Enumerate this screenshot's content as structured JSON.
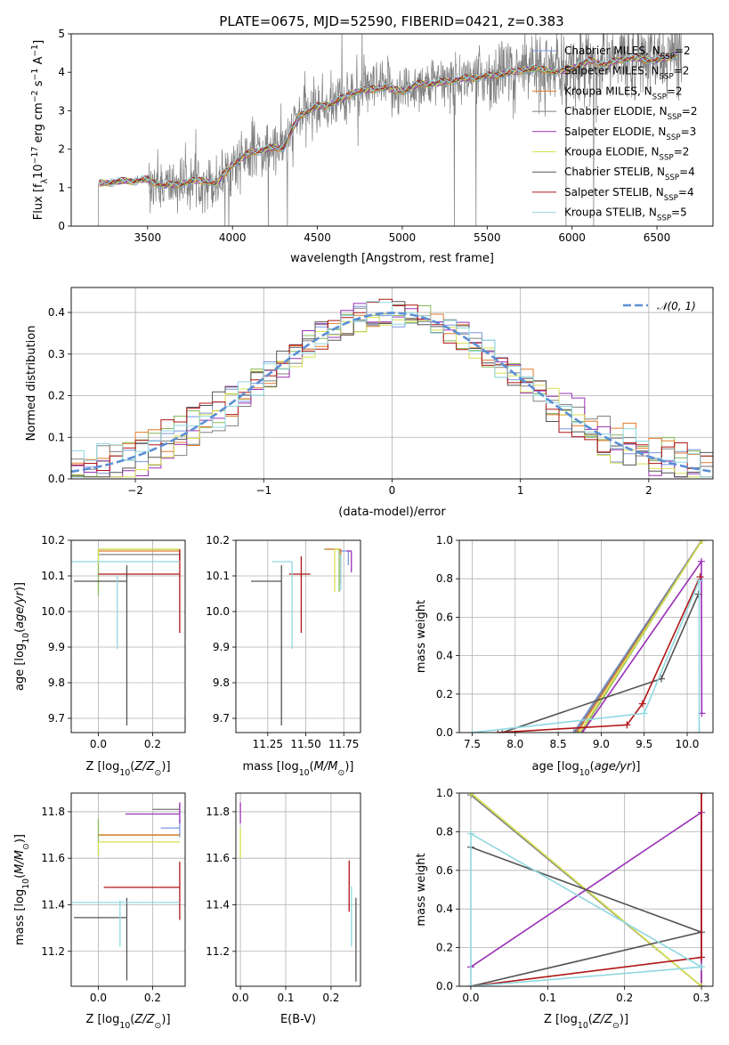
{
  "figure_title": "PLATE=0675, MJD=52590, FIBERID=0421, z=0.383",
  "colors": {
    "chabrier_miles": "#7b96e0",
    "salpeter_miles": "#8ab85a",
    "kroupa_miles": "#e07b2a",
    "chabrier_elodie": "#808080",
    "salpeter_elodie": "#9b30b8",
    "kroupa_elodie": "#d7e050",
    "chabrier_stelib": "#555555",
    "salpeter_stelib": "#b01515",
    "kroupa_stelib": "#8fd8e0",
    "normal_curve": "#5b8fd4",
    "grid": "#b0b0b0"
  },
  "chart_data": [
    {
      "id": "spectrum",
      "type": "line",
      "title": "PLATE=0675, MJD=52590, FIBERID=0421, z=0.383",
      "xlabel": "wavelength [Angstrom, rest frame]",
      "ylabel": "Flux [f_λ 10^-17 erg cm^-2 s^-1 A^-1]",
      "xlim": [
        3050,
        6830
      ],
      "ylim": [
        0,
        5
      ],
      "xticks": [
        3500,
        4000,
        4500,
        5000,
        5500,
        6000,
        6500
      ],
      "yticks": [
        0,
        1,
        2,
        3,
        4,
        5
      ],
      "grid": false,
      "legend_position": "top-right",
      "data_line": {
        "x_start": 3210,
        "x_end": 6650,
        "color": "gray"
      },
      "continuum_knots": {
        "x": [
          3210,
          3300,
          3500,
          3600,
          3700,
          3800,
          3900,
          4000,
          4100,
          4200,
          4300,
          4400,
          4500,
          4600,
          4700,
          4800,
          4900,
          5000,
          5100,
          5200,
          5300,
          5400,
          5500,
          5600,
          5700,
          5800,
          5900,
          6000,
          6100,
          6200,
          6300,
          6400,
          6500,
          6600,
          6650
        ],
        "y": [
          1.1,
          1.15,
          1.2,
          1.05,
          1.1,
          1.2,
          1.1,
          1.6,
          1.9,
          2.0,
          2.05,
          2.9,
          3.1,
          3.2,
          3.45,
          3.55,
          3.6,
          3.5,
          3.7,
          3.7,
          3.8,
          3.85,
          3.9,
          3.95,
          4.05,
          4.1,
          4.0,
          4.1,
          4.3,
          4.2,
          4.35,
          4.35,
          4.3,
          4.45,
          4.45
        ]
      },
      "series": [
        {
          "name": "Chabrier MILES, N_SSP=2",
          "label": "Chabrier MILES, N",
          "sub": "SSP",
          "nssp": "=2",
          "color_key": "chabrier_miles"
        },
        {
          "name": "Salpeter MILES, N_SSP=2",
          "label": "Salpeter MILES, N",
          "sub": "SSP",
          "nssp": "=2",
          "color_key": "salpeter_miles"
        },
        {
          "name": "Kroupa MILES, N_SSP=2",
          "label": "Kroupa MILES, N",
          "sub": "SSP",
          "nssp": "=2",
          "color_key": "kroupa_miles"
        },
        {
          "name": "Chabrier ELODIE, N_SSP=2",
          "label": "Chabrier ELODIE, N",
          "sub": "SSP",
          "nssp": "=2",
          "color_key": "chabrier_elodie"
        },
        {
          "name": "Salpeter ELODIE, N_SSP=3",
          "label": "Salpeter ELODIE, N",
          "sub": "SSP",
          "nssp": "=3",
          "color_key": "salpeter_elodie"
        },
        {
          "name": "Kroupa ELODIE, N_SSP=2",
          "label": "Kroupa ELODIE, N",
          "sub": "SSP",
          "nssp": "=2",
          "color_key": "kroupa_elodie"
        },
        {
          "name": "Chabrier STELIB, N_SSP=4",
          "label": "Chabrier STELIB, N",
          "sub": "SSP",
          "nssp": "=4",
          "color_key": "chabrier_stelib"
        },
        {
          "name": "Salpeter STELIB, N_SSP=4",
          "label": "Salpeter STELIB, N",
          "sub": "SSP",
          "nssp": "=4",
          "color_key": "salpeter_stelib"
        },
        {
          "name": "Kroupa STELIB, N_SSP=5",
          "label": "Kroupa STELIB, N",
          "sub": "SSP",
          "nssp": "=5",
          "color_key": "kroupa_stelib"
        }
      ]
    },
    {
      "id": "residuals",
      "type": "line",
      "xlabel": "(data-model)/error",
      "ylabel": "Normed distribution",
      "xlim": [
        -2.5,
        2.5
      ],
      "ylim": [
        0,
        0.46
      ],
      "xticks": [
        -2,
        -1,
        0,
        1,
        2
      ],
      "yticks": [
        0.0,
        0.1,
        0.2,
        0.3,
        0.4
      ],
      "grid": true,
      "legend_position": "top-right",
      "legend_label": "𝒩(0, 1)",
      "normal_curve": {
        "mean": 0,
        "sigma": 1
      },
      "histogram_bin_width": 0.1,
      "histogram_series": [
        "chabrier_miles",
        "salpeter_miles",
        "kroupa_miles",
        "chabrier_elodie",
        "salpeter_elodie",
        "kroupa_elodie",
        "chabrier_stelib",
        "salpeter_stelib",
        "kroupa_stelib"
      ]
    },
    {
      "id": "age_vs_Z",
      "type": "scatter",
      "xlabel": "Z [log10(Z/Z⊙)]",
      "ylabel": "age [log10(age/yr)]",
      "xlim": [
        -0.1,
        0.32
      ],
      "ylim": [
        9.66,
        10.2
      ],
      "xticks": [
        0.0,
        0.2
      ],
      "yticks": [
        9.7,
        9.8,
        9.9,
        10.0,
        10.1,
        10.2
      ],
      "grid": true,
      "points": [
        {
          "key": "chabrier_miles",
          "x": 0.3,
          "y": 10.17,
          "xerr": [
            0.0,
            0.0
          ],
          "yerr": [
            0.02,
            0.0
          ]
        },
        {
          "key": "salpeter_miles",
          "x": 0.0,
          "y": 10.175,
          "xerr": [
            0.0,
            0.3
          ],
          "yerr": [
            0.13,
            0.0
          ]
        },
        {
          "key": "kroupa_miles",
          "x": 0.3,
          "y": 10.17,
          "xerr": [
            0.3,
            0.0
          ],
          "yerr": [
            0.03,
            0.0
          ]
        },
        {
          "key": "chabrier_elodie",
          "x": 0.3,
          "y": 10.16,
          "xerr": [
            0.3,
            0.0
          ],
          "yerr": [
            0.0,
            0.0
          ]
        },
        {
          "key": "salpeter_elodie",
          "x": 0.3,
          "y": 10.165,
          "xerr": [
            0.0,
            0.0
          ],
          "yerr": [
            0.02,
            0.0
          ]
        },
        {
          "key": "kroupa_elodie",
          "x": 0.0,
          "y": 10.175,
          "xerr": [
            0.0,
            0.3
          ],
          "yerr": [
            0.04,
            0.0
          ]
        },
        {
          "key": "chabrier_stelib",
          "x": 0.105,
          "y": 10.085,
          "xerr": [
            0.195,
            0.0
          ],
          "yerr": [
            0.405,
            0.045
          ]
        },
        {
          "key": "salpeter_stelib",
          "x": 0.3,
          "y": 10.105,
          "xerr": [
            0.3,
            0.0
          ],
          "yerr": [
            0.165,
            0.07
          ]
        },
        {
          "key": "kroupa_stelib",
          "x": 0.3,
          "y": 10.14,
          "xerr": [
            0.4,
            0.0
          ],
          "yerr": [
            0.0,
            0.0
          ]
        },
        {
          "key": "kroupa_stelib",
          "x": 0.07,
          "y": 10.07,
          "xerr": [
            0.0,
            0.0
          ],
          "yerr": [
            0.175,
            0.03
          ]
        }
      ]
    },
    {
      "id": "age_vs_mass",
      "type": "scatter",
      "xlabel": "mass [log10(M/M⊙)]",
      "ylabel": "",
      "xlim": [
        11.04,
        11.86
      ],
      "ylim": [
        9.66,
        10.2
      ],
      "xticks": [
        11.25,
        11.5,
        11.75
      ],
      "yticks": [
        9.7,
        9.8,
        9.9,
        10.0,
        10.1,
        10.2
      ],
      "grid": true,
      "points": [
        {
          "key": "chabrier_miles",
          "x": 11.78,
          "y": 10.17,
          "xerr": [
            0.06,
            0.0
          ],
          "yerr": [
            0.04,
            0.0
          ]
        },
        {
          "key": "salpeter_miles",
          "x": 11.72,
          "y": 10.175,
          "xerr": [
            0.1,
            0.0
          ],
          "yerr": [
            0.12,
            0.0
          ]
        },
        {
          "key": "kroupa_miles",
          "x": 11.73,
          "y": 10.175,
          "xerr": [
            0.1,
            0.0
          ],
          "yerr": [
            0.1,
            0.0
          ]
        },
        {
          "key": "salpeter_elodie",
          "x": 11.8,
          "y": 10.17,
          "xerr": [
            0.03,
            0.0
          ],
          "yerr": [
            0.06,
            0.0
          ]
        },
        {
          "key": "kroupa_elodie",
          "x": 11.69,
          "y": 10.175,
          "xerr": [
            0.0,
            0.03
          ],
          "yerr": [
            0.12,
            0.0
          ]
        },
        {
          "key": "chabrier_stelib",
          "x": 11.34,
          "y": 10.085,
          "xerr": [
            0.2,
            0.0
          ],
          "yerr": [
            0.405,
            0.045
          ]
        },
        {
          "key": "salpeter_stelib",
          "x": 11.47,
          "y": 10.105,
          "xerr": [
            0.08,
            0.06
          ],
          "yerr": [
            0.165,
            0.05
          ]
        },
        {
          "key": "kroupa_stelib",
          "x": 11.41,
          "y": 10.14,
          "xerr": [
            0.13,
            0.0
          ],
          "yerr": [
            0.245,
            0.0
          ]
        },
        {
          "key": "kroupa_stelib",
          "x": 11.73,
          "y": 10.12,
          "xerr": [
            0.0,
            0.0
          ],
          "yerr": [
            0.06,
            0.04
          ]
        }
      ]
    },
    {
      "id": "massweight_vs_age",
      "type": "line",
      "xlabel": "age [log10(age/yr)]",
      "ylabel": "mass weight",
      "xlim": [
        7.35,
        10.3
      ],
      "ylim": [
        0,
        1
      ],
      "xticks": [
        7.5,
        8.0,
        8.5,
        9.0,
        9.5,
        10.0
      ],
      "yticks": [
        0.0,
        0.2,
        0.4,
        0.6,
        0.8,
        1.0
      ],
      "grid": true,
      "series": [
        {
          "key": "chabrier_miles",
          "x": [
            8.68,
            10.17
          ],
          "y": [
            0.0,
            1.0
          ]
        },
        {
          "key": "salpeter_miles",
          "x": [
            8.77,
            10.17
          ],
          "y": [
            0.0,
            1.0
          ]
        },
        {
          "key": "kroupa_miles",
          "x": [
            8.72,
            10.17
          ],
          "y": [
            0.0,
            1.0
          ]
        },
        {
          "key": "chabrier_elodie",
          "x": [
            8.7,
            10.17
          ],
          "y": [
            0.0,
            1.0
          ]
        },
        {
          "key": "salpeter_elodie",
          "x": [
            8.78,
            10.165,
            10.17
          ],
          "y": [
            0.0,
            0.89,
            0.1
          ]
        },
        {
          "key": "kroupa_elodie",
          "x": [
            8.75,
            10.175
          ],
          "y": [
            0.0,
            1.0
          ]
        },
        {
          "key": "chabrier_stelib",
          "x": [
            7.85,
            9.7,
            10.13
          ],
          "y": [
            0.0,
            0.28,
            0.72
          ]
        },
        {
          "key": "salpeter_stelib",
          "x": [
            7.8,
            9.3,
            9.48,
            10.15
          ],
          "y": [
            0.0,
            0.04,
            0.15,
            0.81
          ]
        },
        {
          "key": "kroupa_stelib",
          "x": [
            7.5,
            9.5,
            10.14,
            10.14
          ],
          "y": [
            0.0,
            0.1,
            0.79,
            0.0
          ]
        }
      ]
    },
    {
      "id": "mass_vs_Z",
      "type": "scatter",
      "xlabel": "Z [log10(Z/Z⊙)]",
      "ylabel": "mass [log10(M/M⊙)]",
      "xlim": [
        -0.1,
        0.32
      ],
      "ylim": [
        11.05,
        11.88
      ],
      "xticks": [
        0.0,
        0.2
      ],
      "yticks": [
        11.2,
        11.4,
        11.6,
        11.8
      ],
      "grid": true,
      "points": [
        {
          "key": "chabrier_miles",
          "x": 0.3,
          "y": 11.73,
          "xerr": [
            0.07,
            0.0
          ],
          "yerr": [
            0.04,
            0.04
          ]
        },
        {
          "key": "salpeter_miles",
          "x": 0.0,
          "y": 11.7,
          "xerr": [
            0.0,
            0.3
          ],
          "yerr": [
            0.09,
            0.07
          ]
        },
        {
          "key": "kroupa_miles",
          "x": 0.3,
          "y": 11.7,
          "xerr": [
            0.3,
            0.0
          ],
          "yerr": [
            0.0,
            0.0
          ]
        },
        {
          "key": "chabrier_elodie",
          "x": 0.3,
          "y": 11.81,
          "xerr": [
            0.1,
            0.0
          ],
          "yerr": [
            0.02,
            0.02
          ]
        },
        {
          "key": "salpeter_elodie",
          "x": 0.3,
          "y": 11.79,
          "xerr": [
            0.2,
            0.0
          ],
          "yerr": [
            0.04,
            0.05
          ]
        },
        {
          "key": "kroupa_elodie",
          "x": 0.0,
          "y": 11.67,
          "xerr": [
            0.0,
            0.3
          ],
          "yerr": [
            0.06,
            0.0
          ]
        },
        {
          "key": "chabrier_stelib",
          "x": 0.105,
          "y": 11.345,
          "xerr": [
            0.195,
            0.0
          ],
          "yerr": [
            0.27,
            0.085
          ]
        },
        {
          "key": "salpeter_stelib",
          "x": 0.3,
          "y": 11.475,
          "xerr": [
            0.28,
            0.0
          ],
          "yerr": [
            0.14,
            0.11
          ]
        },
        {
          "key": "kroupa_stelib",
          "x": 0.3,
          "y": 11.41,
          "xerr": [
            0.4,
            0.0
          ],
          "yerr": [
            0.0,
            0.0
          ]
        },
        {
          "key": "kroupa_stelib",
          "x": 0.08,
          "y": 11.34,
          "xerr": [
            0.0,
            0.0
          ],
          "yerr": [
            0.12,
            0.08
          ]
        }
      ]
    },
    {
      "id": "mass_vs_ebv",
      "type": "scatter",
      "xlabel": "E(B-V)",
      "ylabel": "",
      "xlim": [
        -0.01,
        0.265
      ],
      "ylim": [
        11.05,
        11.88
      ],
      "xticks": [
        0.0,
        0.1,
        0.2
      ],
      "yticks": [
        11.2,
        11.4,
        11.6,
        11.8
      ],
      "grid": true,
      "points": [
        {
          "key": "salpeter_elodie",
          "x": 0.0,
          "y": 11.8,
          "xerr": [
            0.0,
            0.0
          ],
          "yerr": [
            0.05,
            0.04
          ]
        },
        {
          "key": "kroupa_elodie",
          "x": 0.0,
          "y": 11.66,
          "xerr": [
            0.0,
            0.0
          ],
          "yerr": [
            0.06,
            0.07
          ]
        },
        {
          "key": "salpeter_stelib",
          "x": 0.24,
          "y": 11.47,
          "xerr": [
            0.0,
            0.0
          ],
          "yerr": [
            0.1,
            0.12
          ]
        },
        {
          "key": "kroupa_stelib",
          "x": 0.245,
          "y": 11.38,
          "xerr": [
            0.0,
            0.0
          ],
          "yerr": [
            0.16,
            0.1
          ]
        },
        {
          "key": "chabrier_stelib",
          "x": 0.255,
          "y": 11.25,
          "xerr": [
            0.0,
            0.0
          ],
          "yerr": [
            0.18,
            0.18
          ]
        }
      ]
    },
    {
      "id": "massweight_vs_Z",
      "type": "line",
      "xlabel": "Z [log10(Z/Z⊙)]",
      "ylabel": "mass weight",
      "xlim": [
        -0.015,
        0.315
      ],
      "ylim": [
        0,
        1
      ],
      "xticks": [
        0.0,
        0.1,
        0.2,
        0.3
      ],
      "yticks": [
        0.0,
        0.2,
        0.4,
        0.6,
        0.8,
        1.0
      ],
      "grid": true,
      "series": [
        {
          "key": "chabrier_miles",
          "x": [
            0.3,
            0.3
          ],
          "y": [
            0.0,
            1.0
          ]
        },
        {
          "key": "salpeter_miles",
          "x": [
            0.0,
            0.3
          ],
          "y": [
            1.0,
            0.0
          ]
        },
        {
          "key": "kroupa_miles",
          "x": [
            0.3,
            0.3
          ],
          "y": [
            0.0,
            1.0
          ]
        },
        {
          "key": "chabrier_elodie",
          "x": [
            0.0,
            0.3
          ],
          "y": [
            0.99,
            0.0
          ]
        },
        {
          "key": "salpeter_elodie",
          "x": [
            0.0,
            0.3,
            0.3
          ],
          "y": [
            0.1,
            0.9,
            0.0
          ]
        },
        {
          "key": "kroupa_elodie",
          "x": [
            0.0,
            0.3
          ],
          "y": [
            1.0,
            0.0
          ]
        },
        {
          "key": "chabrier_stelib",
          "x": [
            0.0,
            0.3,
            0.0
          ],
          "y": [
            0.0,
            0.28,
            0.72
          ]
        },
        {
          "key": "salpeter_stelib",
          "x": [
            0.0,
            0.3,
            0.3
          ],
          "y": [
            0.0,
            0.15,
            1.0
          ]
        },
        {
          "key": "kroupa_stelib",
          "x": [
            0.0,
            0.3,
            0.0,
            0.0
          ],
          "y": [
            0.0,
            0.1,
            0.79,
            0.0
          ]
        }
      ]
    }
  ]
}
